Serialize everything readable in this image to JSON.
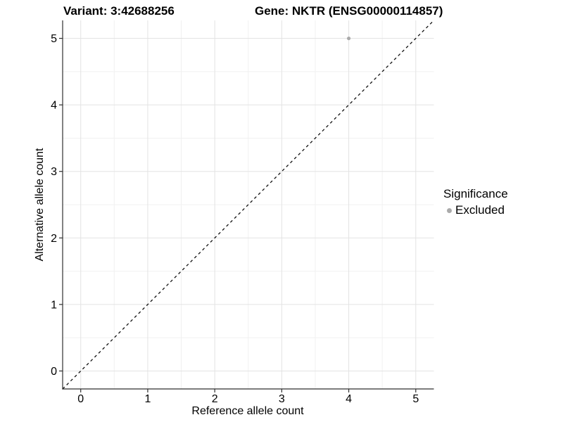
{
  "header": {
    "variant_title": "Variant: 3:42688256",
    "gene_title": "Gene: NKTR (ENSG00000114857)"
  },
  "legend": {
    "title": "Significance",
    "items": [
      {
        "label": "Excluded",
        "color": "#aaaaaa"
      }
    ]
  },
  "chart_data": {
    "type": "scatter",
    "title_left": "Variant: 3:42688256",
    "title_right": "Gene: NKTR (ENSG00000114857)",
    "xlabel": "Reference allele count",
    "ylabel": "Alternative allele count",
    "x_ticks": [
      0,
      1,
      2,
      3,
      4,
      5
    ],
    "y_ticks": [
      0,
      1,
      2,
      3,
      4,
      5
    ],
    "xlim": [
      -0.27,
      5.27
    ],
    "ylim": [
      -0.27,
      5.27
    ],
    "grid": "major+minor",
    "legend_position": "right",
    "series": [
      {
        "name": "Excluded",
        "color": "#aaaaaa",
        "points": [
          {
            "x": 4,
            "y": 5
          }
        ]
      }
    ],
    "reference_line": {
      "type": "identity",
      "slope": 1,
      "intercept": 0,
      "style": "dashed",
      "color": "#111111"
    },
    "colors": {
      "grid_major": "#e3e3e3",
      "grid_minor": "#f1f1f1",
      "axis_line": "#2f2f2f",
      "point": "#aaaaaa"
    }
  }
}
